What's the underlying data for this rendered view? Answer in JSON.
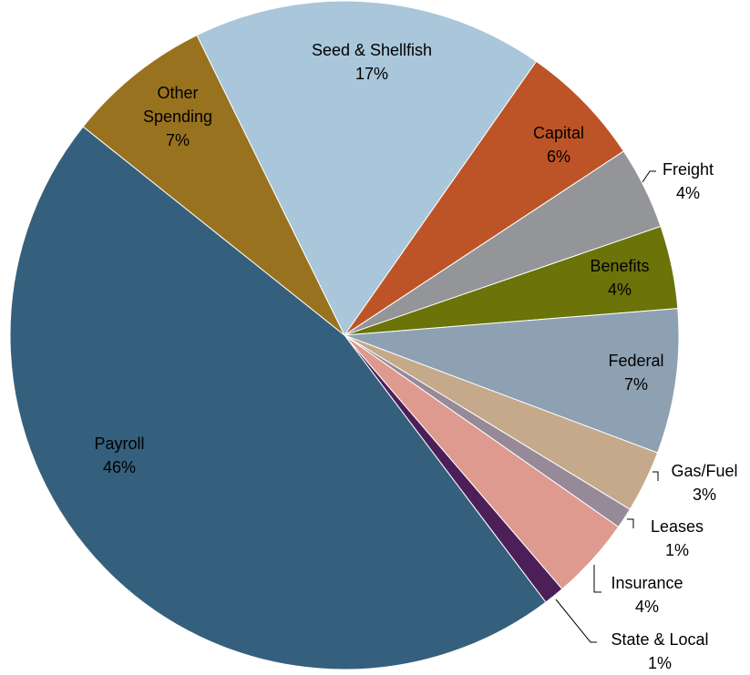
{
  "chart_data": {
    "type": "pie",
    "categories": [
      "Seed & Shellfish",
      "Capital",
      "Freight",
      "Benefits",
      "Federal",
      "Gas/Fuel",
      "Leases",
      "Insurance",
      "State & Local",
      "Payroll",
      "Other Spending"
    ],
    "values": [
      17,
      6,
      4,
      4,
      7,
      3,
      1,
      4,
      1,
      46,
      7
    ],
    "value_labels": [
      "17%",
      "6%",
      "4%",
      "4%",
      "7%",
      "3%",
      "1%",
      "4%",
      "1%",
      "46%",
      "7%"
    ],
    "colors": [
      "#a9c6da",
      "#bd5427",
      "#939598",
      "#6b7309",
      "#8ea1b3",
      "#c4a98a",
      "#968a99",
      "#de9a8e",
      "#4d1f59",
      "#35607d",
      "#98721f"
    ]
  }
}
